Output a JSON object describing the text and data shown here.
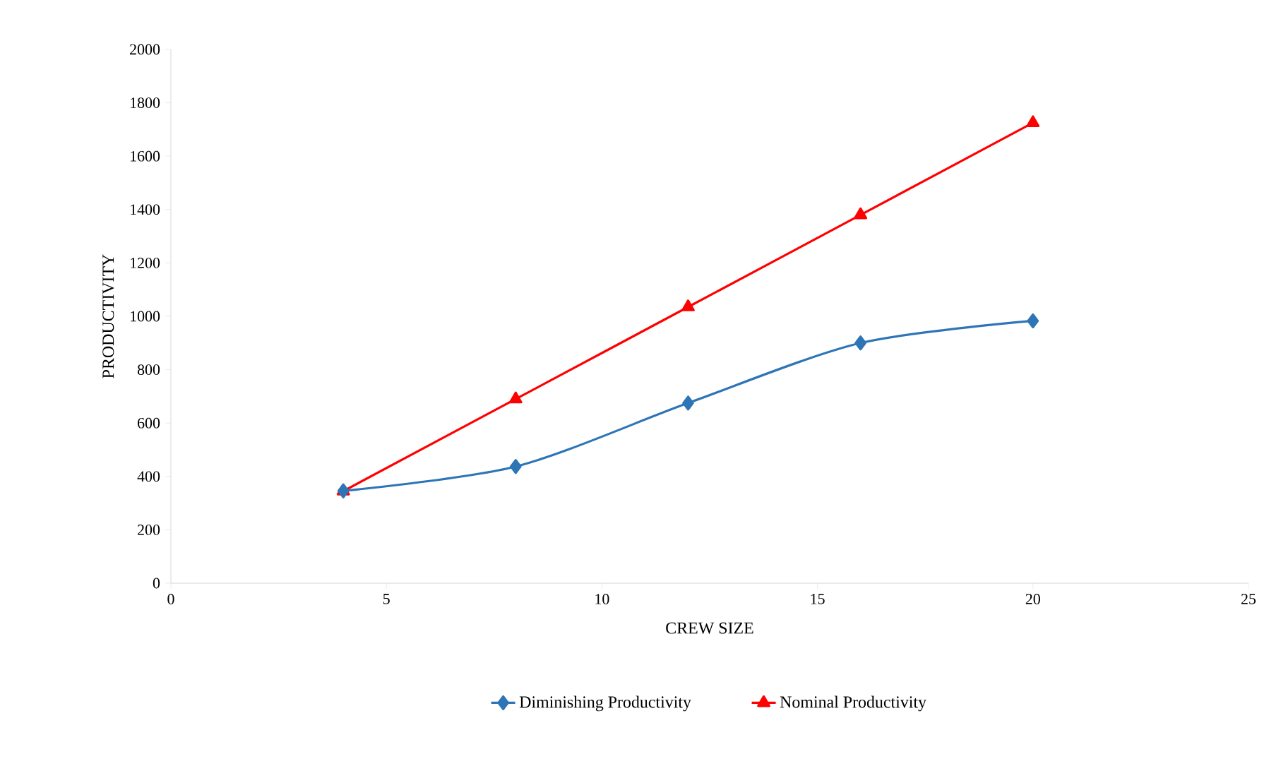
{
  "chart_data": {
    "type": "line",
    "xlabel": "CREW SIZE",
    "ylabel": "PRODUCTIVITY",
    "x": [
      4,
      8,
      12,
      16,
      20
    ],
    "series": [
      {
        "name": "Diminishing Productivity",
        "color": "#2e75b6",
        "marker": "diamond",
        "values": [
          346,
          437,
          675,
          900,
          983
        ]
      },
      {
        "name": "Nominal Productivity",
        "color": "#ff0000",
        "marker": "triangle",
        "values": [
          345,
          690,
          1035,
          1380,
          1725
        ]
      }
    ],
    "xlim": [
      0,
      25
    ],
    "xticks": [
      0,
      5,
      10,
      15,
      20,
      25
    ],
    "ylim": [
      0,
      2000
    ],
    "yticks": [
      0,
      200,
      400,
      600,
      800,
      1000,
      1200,
      1400,
      1600,
      1800,
      2000
    ],
    "grid": false,
    "legend": "bottom",
    "line_style": "solid"
  }
}
